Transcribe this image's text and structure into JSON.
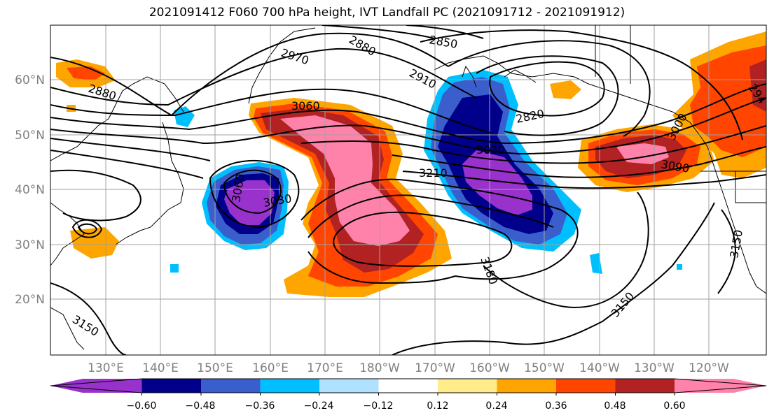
{
  "title": "2021091412 F060 700 hPa height, IVT Landfall PC (2021091712 - 2021091912)",
  "lat_labels": [
    "60°N",
    "50°N",
    "40°N",
    "30°N",
    "20°N"
  ],
  "lon_labels": [
    "130°E",
    "140°E",
    "150°E",
    "160°E",
    "170°E",
    "180°W",
    "170°W",
    "160°W",
    "150°W",
    "140°W",
    "130°W",
    "120°W"
  ],
  "contour_labels": [
    "2850",
    "2880",
    "2880",
    "2970",
    "2910",
    "3060",
    "2820",
    "3000",
    "3030",
    "3210",
    "3060",
    "3030",
    "3090",
    "3180",
    "3150",
    "3150",
    "3150",
    "294"
  ],
  "colorbar": {
    "colors": [
      "#9932cc",
      "#00008b",
      "#3a5fcd",
      "#00bfff",
      "#b0e2ff",
      "#ffffff",
      "#ffec8b",
      "#ffa500",
      "#ff4500",
      "#b22222",
      "#ff82ab"
    ],
    "tick_labels": [
      "−0.60",
      "−0.48",
      "−0.36",
      "−0.24",
      "−0.12",
      "0.12",
      "0.24",
      "0.36",
      "0.48",
      "0.60"
    ]
  }
}
